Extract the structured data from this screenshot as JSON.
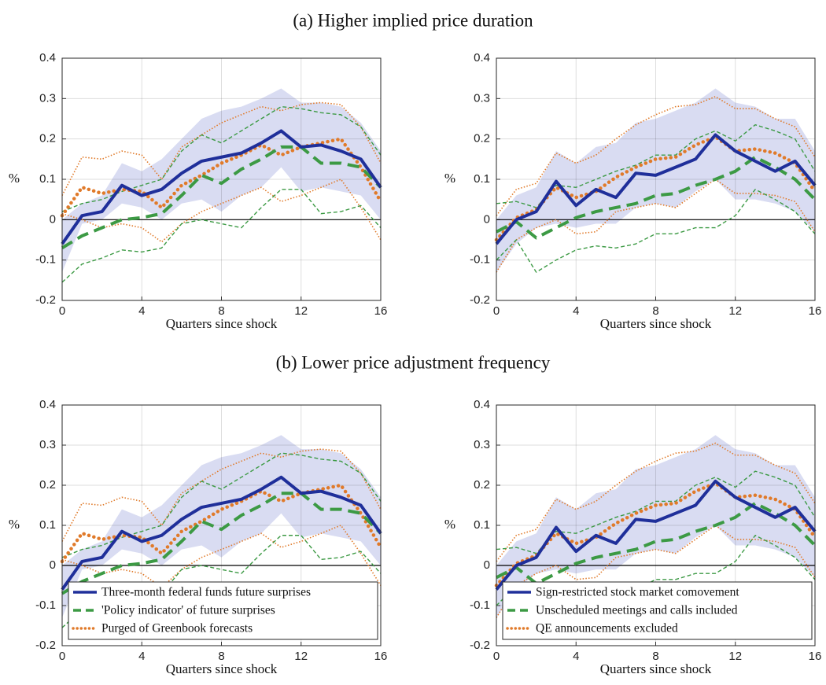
{
  "headings": [
    "(a) Higher implied price duration",
    "(b) Lower price adjustment frequency"
  ],
  "chart_data": [
    {
      "type": "line",
      "xlabel": "Quarters since shock",
      "ylabel": "%",
      "x": [
        0,
        1,
        2,
        3,
        4,
        5,
        6,
        7,
        8,
        9,
        10,
        11,
        12,
        13,
        14,
        15,
        16
      ],
      "xlim": [
        0,
        16
      ],
      "xticks": [
        0,
        4,
        8,
        12,
        16
      ],
      "ylim": [
        -0.2,
        0.4
      ],
      "yticks": [
        -0.2,
        -0.1,
        0,
        0.1,
        0.2,
        0.3,
        0.4
      ],
      "grid": true,
      "reference_line": 0,
      "band": {
        "color": "#d9dcf2",
        "lower": [
          -0.13,
          -0.01,
          0.0,
          0.04,
          0.03,
          0.0,
          0.04,
          0.05,
          0.02,
          0.06,
          0.08,
          0.13,
          0.07,
          0.08,
          0.07,
          0.06,
          0.0
        ],
        "upper": [
          0.0,
          0.04,
          0.06,
          0.14,
          0.12,
          0.15,
          0.2,
          0.25,
          0.27,
          0.28,
          0.3,
          0.325,
          0.29,
          0.29,
          0.28,
          0.24,
          0.17
        ]
      },
      "series": [
        {
          "color": "#1f2f9a",
          "style": "solid",
          "width": 4,
          "values": [
            -0.06,
            0.01,
            0.02,
            0.085,
            0.06,
            0.075,
            0.115,
            0.145,
            0.155,
            0.165,
            0.19,
            0.22,
            0.18,
            0.185,
            0.17,
            0.15,
            0.08
          ]
        },
        {
          "color": "#3c9a44",
          "style": "dashed",
          "width": 4,
          "values": [
            -0.07,
            -0.04,
            -0.02,
            0.0,
            0.005,
            0.015,
            0.06,
            0.11,
            0.09,
            0.125,
            0.15,
            0.18,
            0.18,
            0.14,
            0.14,
            0.13,
            0.08
          ]
        },
        {
          "color": "#e07a2a",
          "style": "dotted",
          "width": 4.5,
          "values": [
            0.01,
            0.08,
            0.065,
            0.075,
            0.07,
            0.03,
            0.085,
            0.11,
            0.14,
            0.16,
            0.185,
            0.16,
            0.18,
            0.19,
            0.2,
            0.13,
            0.045
          ]
        },
        {
          "color": "#3c9a44",
          "style": "thin-dashed",
          "width": 1.4,
          "values": [
            -0.155,
            -0.11,
            -0.095,
            -0.075,
            -0.08,
            -0.07,
            -0.01,
            0.0,
            -0.01,
            -0.02,
            0.03,
            0.075,
            0.075,
            0.015,
            0.02,
            0.035,
            -0.02
          ]
        },
        {
          "color": "#3c9a44",
          "style": "thin-dashed",
          "width": 1.4,
          "values": [
            0.02,
            0.04,
            0.05,
            0.07,
            0.085,
            0.1,
            0.17,
            0.21,
            0.19,
            0.22,
            0.25,
            0.28,
            0.275,
            0.265,
            0.26,
            0.23,
            0.16
          ]
        },
        {
          "color": "#e07a2a",
          "style": "thin-dotted",
          "width": 1.6,
          "values": [
            0.015,
            0.0,
            -0.02,
            -0.01,
            -0.02,
            -0.055,
            -0.01,
            0.02,
            0.04,
            0.06,
            0.08,
            0.045,
            0.06,
            0.08,
            0.1,
            0.03,
            -0.05
          ]
        },
        {
          "color": "#e07a2a",
          "style": "thin-dotted",
          "width": 1.6,
          "values": [
            0.06,
            0.155,
            0.15,
            0.17,
            0.16,
            0.1,
            0.18,
            0.21,
            0.24,
            0.26,
            0.28,
            0.27,
            0.285,
            0.29,
            0.285,
            0.23,
            0.14
          ]
        }
      ]
    },
    {
      "type": "line",
      "xlabel": "Quarters since shock",
      "ylabel": "%",
      "x": [
        0,
        1,
        2,
        3,
        4,
        5,
        6,
        7,
        8,
        9,
        10,
        11,
        12,
        13,
        14,
        15,
        16
      ],
      "xlim": [
        0,
        16
      ],
      "xticks": [
        0,
        4,
        8,
        12,
        16
      ],
      "ylim": [
        -0.2,
        0.4
      ],
      "yticks": [
        -0.2,
        -0.1,
        0,
        0.1,
        0.2,
        0.3,
        0.4
      ],
      "grid": true,
      "reference_line": 0,
      "band": {
        "color": "#d9dcf2",
        "lower": [
          -0.13,
          -0.06,
          -0.02,
          -0.01,
          -0.02,
          -0.01,
          -0.01,
          0.03,
          0.04,
          0.03,
          0.07,
          0.1,
          0.05,
          0.05,
          0.04,
          0.02,
          -0.03
        ],
        "upper": [
          0.0,
          0.06,
          0.08,
          0.17,
          0.14,
          0.18,
          0.19,
          0.24,
          0.25,
          0.27,
          0.29,
          0.325,
          0.29,
          0.28,
          0.25,
          0.25,
          0.17
        ]
      },
      "series": [
        {
          "color": "#1f2f9a",
          "style": "solid",
          "width": 4,
          "values": [
            -0.06,
            0.0,
            0.02,
            0.095,
            0.035,
            0.075,
            0.055,
            0.115,
            0.11,
            0.13,
            0.15,
            0.21,
            0.17,
            0.145,
            0.12,
            0.145,
            0.085
          ]
        },
        {
          "color": "#3c9a44",
          "style": "dashed",
          "width": 4,
          "values": [
            -0.03,
            -0.005,
            -0.045,
            -0.02,
            0.005,
            0.02,
            0.03,
            0.04,
            0.06,
            0.065,
            0.085,
            0.1,
            0.12,
            0.155,
            0.13,
            0.1,
            0.05
          ]
        },
        {
          "color": "#e07a2a",
          "style": "dotted",
          "width": 4.5,
          "values": [
            -0.05,
            0.005,
            0.025,
            0.08,
            0.055,
            0.07,
            0.105,
            0.13,
            0.15,
            0.155,
            0.185,
            0.205,
            0.17,
            0.175,
            0.165,
            0.14,
            0.07
          ]
        },
        {
          "color": "#3c9a44",
          "style": "thin-dashed",
          "width": 1.4,
          "values": [
            -0.1,
            -0.05,
            -0.13,
            -0.1,
            -0.075,
            -0.065,
            -0.07,
            -0.06,
            -0.035,
            -0.035,
            -0.02,
            -0.02,
            0.01,
            0.075,
            0.05,
            0.02,
            -0.035
          ]
        },
        {
          "color": "#3c9a44",
          "style": "thin-dashed",
          "width": 1.4,
          "values": [
            0.04,
            0.045,
            0.03,
            0.085,
            0.08,
            0.1,
            0.12,
            0.135,
            0.16,
            0.16,
            0.2,
            0.22,
            0.195,
            0.235,
            0.22,
            0.2,
            0.12
          ]
        },
        {
          "color": "#e07a2a",
          "style": "thin-dotted",
          "width": 1.6,
          "values": [
            -0.13,
            -0.05,
            -0.02,
            0.0,
            -0.035,
            -0.03,
            0.02,
            0.03,
            0.04,
            0.03,
            0.065,
            0.1,
            0.065,
            0.065,
            0.06,
            0.045,
            -0.03
          ]
        },
        {
          "color": "#e07a2a",
          "style": "thin-dotted",
          "width": 1.6,
          "values": [
            0.01,
            0.075,
            0.09,
            0.165,
            0.14,
            0.16,
            0.2,
            0.235,
            0.26,
            0.28,
            0.285,
            0.305,
            0.275,
            0.275,
            0.25,
            0.23,
            0.155
          ]
        }
      ]
    },
    {
      "type": "line",
      "xlabel": "Quarters since shock",
      "ylabel": "%",
      "x": [
        0,
        1,
        2,
        3,
        4,
        5,
        6,
        7,
        8,
        9,
        10,
        11,
        12,
        13,
        14,
        15,
        16
      ],
      "xlim": [
        0,
        16
      ],
      "xticks": [
        0,
        4,
        8,
        12,
        16
      ],
      "ylim": [
        -0.2,
        0.4
      ],
      "yticks": [
        -0.2,
        -0.1,
        0,
        0.1,
        0.2,
        0.3,
        0.4
      ],
      "grid": true,
      "reference_line": 0,
      "legend": "lower center",
      "band": {
        "color": "#d9dcf2",
        "lower": [
          -0.13,
          -0.01,
          0.0,
          0.04,
          0.03,
          0.0,
          0.04,
          0.05,
          0.02,
          0.06,
          0.08,
          0.13,
          0.07,
          0.08,
          0.07,
          0.06,
          0.0
        ],
        "upper": [
          0.0,
          0.04,
          0.06,
          0.14,
          0.12,
          0.15,
          0.2,
          0.25,
          0.27,
          0.28,
          0.3,
          0.325,
          0.29,
          0.29,
          0.28,
          0.24,
          0.17
        ]
      },
      "series": [
        {
          "name": "Three-month federal funds future surprises",
          "color": "#1f2f9a",
          "style": "solid",
          "width": 4,
          "values": [
            -0.06,
            0.01,
            0.02,
            0.085,
            0.06,
            0.075,
            0.115,
            0.145,
            0.155,
            0.165,
            0.19,
            0.22,
            0.18,
            0.185,
            0.17,
            0.15,
            0.08
          ]
        },
        {
          "name": "'Policy indicator' of future surprises",
          "color": "#3c9a44",
          "style": "dashed",
          "width": 4,
          "values": [
            -0.07,
            -0.04,
            -0.02,
            0.0,
            0.005,
            0.015,
            0.06,
            0.11,
            0.09,
            0.125,
            0.15,
            0.18,
            0.18,
            0.14,
            0.14,
            0.13,
            0.08
          ]
        },
        {
          "name": "Purged of Greenbook forecasts",
          "color": "#e07a2a",
          "style": "dotted",
          "width": 4.5,
          "values": [
            0.01,
            0.08,
            0.065,
            0.075,
            0.07,
            0.03,
            0.085,
            0.11,
            0.14,
            0.16,
            0.185,
            0.16,
            0.18,
            0.19,
            0.2,
            0.13,
            0.045
          ]
        },
        {
          "color": "#3c9a44",
          "style": "thin-dashed",
          "width": 1.4,
          "values": [
            -0.155,
            -0.11,
            -0.095,
            -0.075,
            -0.08,
            -0.07,
            -0.01,
            0.0,
            -0.01,
            -0.02,
            0.03,
            0.075,
            0.075,
            0.015,
            0.02,
            0.035,
            -0.02
          ]
        },
        {
          "color": "#3c9a44",
          "style": "thin-dashed",
          "width": 1.4,
          "values": [
            0.02,
            0.04,
            0.05,
            0.07,
            0.085,
            0.1,
            0.17,
            0.21,
            0.19,
            0.22,
            0.25,
            0.28,
            0.275,
            0.265,
            0.26,
            0.23,
            0.16
          ]
        },
        {
          "color": "#e07a2a",
          "style": "thin-dotted",
          "width": 1.6,
          "values": [
            0.015,
            0.0,
            -0.02,
            -0.01,
            -0.02,
            -0.055,
            -0.01,
            0.02,
            0.04,
            0.06,
            0.08,
            0.045,
            0.06,
            0.08,
            0.1,
            0.03,
            -0.05
          ]
        },
        {
          "color": "#e07a2a",
          "style": "thin-dotted",
          "width": 1.6,
          "values": [
            0.06,
            0.155,
            0.15,
            0.17,
            0.16,
            0.1,
            0.18,
            0.21,
            0.24,
            0.26,
            0.28,
            0.27,
            0.285,
            0.29,
            0.285,
            0.23,
            0.14
          ]
        }
      ]
    },
    {
      "type": "line",
      "xlabel": "Quarters since shock",
      "ylabel": "%",
      "x": [
        0,
        1,
        2,
        3,
        4,
        5,
        6,
        7,
        8,
        9,
        10,
        11,
        12,
        13,
        14,
        15,
        16
      ],
      "xlim": [
        0,
        16
      ],
      "xticks": [
        0,
        4,
        8,
        12,
        16
      ],
      "ylim": [
        -0.2,
        0.4
      ],
      "yticks": [
        -0.2,
        -0.1,
        0,
        0.1,
        0.2,
        0.3,
        0.4
      ],
      "grid": true,
      "reference_line": 0,
      "legend": "lower center",
      "band": {
        "color": "#d9dcf2",
        "lower": [
          -0.13,
          -0.06,
          -0.02,
          -0.01,
          -0.02,
          -0.01,
          -0.01,
          0.03,
          0.04,
          0.03,
          0.07,
          0.1,
          0.05,
          0.05,
          0.04,
          0.02,
          -0.03
        ],
        "upper": [
          0.0,
          0.06,
          0.08,
          0.17,
          0.14,
          0.18,
          0.19,
          0.24,
          0.25,
          0.27,
          0.29,
          0.325,
          0.29,
          0.28,
          0.25,
          0.25,
          0.17
        ]
      },
      "series": [
        {
          "name": "Sign-restricted stock market comovement",
          "color": "#1f2f9a",
          "style": "solid",
          "width": 4,
          "values": [
            -0.06,
            0.0,
            0.02,
            0.095,
            0.035,
            0.075,
            0.055,
            0.115,
            0.11,
            0.13,
            0.15,
            0.21,
            0.17,
            0.145,
            0.12,
            0.145,
            0.085
          ]
        },
        {
          "name": "Unscheduled meetings and calls included",
          "color": "#3c9a44",
          "style": "dashed",
          "width": 4,
          "values": [
            -0.03,
            -0.005,
            -0.045,
            -0.02,
            0.005,
            0.02,
            0.03,
            0.04,
            0.06,
            0.065,
            0.085,
            0.1,
            0.12,
            0.155,
            0.13,
            0.1,
            0.05
          ]
        },
        {
          "name": "QE announcements excluded",
          "color": "#e07a2a",
          "style": "dotted",
          "width": 4.5,
          "values": [
            -0.05,
            0.005,
            0.025,
            0.08,
            0.055,
            0.07,
            0.105,
            0.13,
            0.15,
            0.155,
            0.185,
            0.205,
            0.17,
            0.175,
            0.165,
            0.14,
            0.07
          ]
        },
        {
          "color": "#3c9a44",
          "style": "thin-dashed",
          "width": 1.4,
          "values": [
            -0.1,
            -0.05,
            -0.13,
            -0.1,
            -0.075,
            -0.065,
            -0.07,
            -0.06,
            -0.035,
            -0.035,
            -0.02,
            -0.02,
            0.01,
            0.075,
            0.05,
            0.02,
            -0.035
          ]
        },
        {
          "color": "#3c9a44",
          "style": "thin-dashed",
          "width": 1.4,
          "values": [
            0.04,
            0.045,
            0.03,
            0.085,
            0.08,
            0.1,
            0.12,
            0.135,
            0.16,
            0.16,
            0.2,
            0.22,
            0.195,
            0.235,
            0.22,
            0.2,
            0.12
          ]
        },
        {
          "color": "#e07a2a",
          "style": "thin-dotted",
          "width": 1.6,
          "values": [
            -0.13,
            -0.05,
            -0.02,
            0.0,
            -0.035,
            -0.03,
            0.02,
            0.03,
            0.04,
            0.03,
            0.065,
            0.1,
            0.065,
            0.065,
            0.06,
            0.045,
            -0.03
          ]
        },
        {
          "color": "#e07a2a",
          "style": "thin-dotted",
          "width": 1.6,
          "values": [
            0.01,
            0.075,
            0.09,
            0.165,
            0.14,
            0.16,
            0.2,
            0.235,
            0.26,
            0.28,
            0.285,
            0.305,
            0.275,
            0.275,
            0.25,
            0.23,
            0.155
          ]
        }
      ]
    }
  ]
}
